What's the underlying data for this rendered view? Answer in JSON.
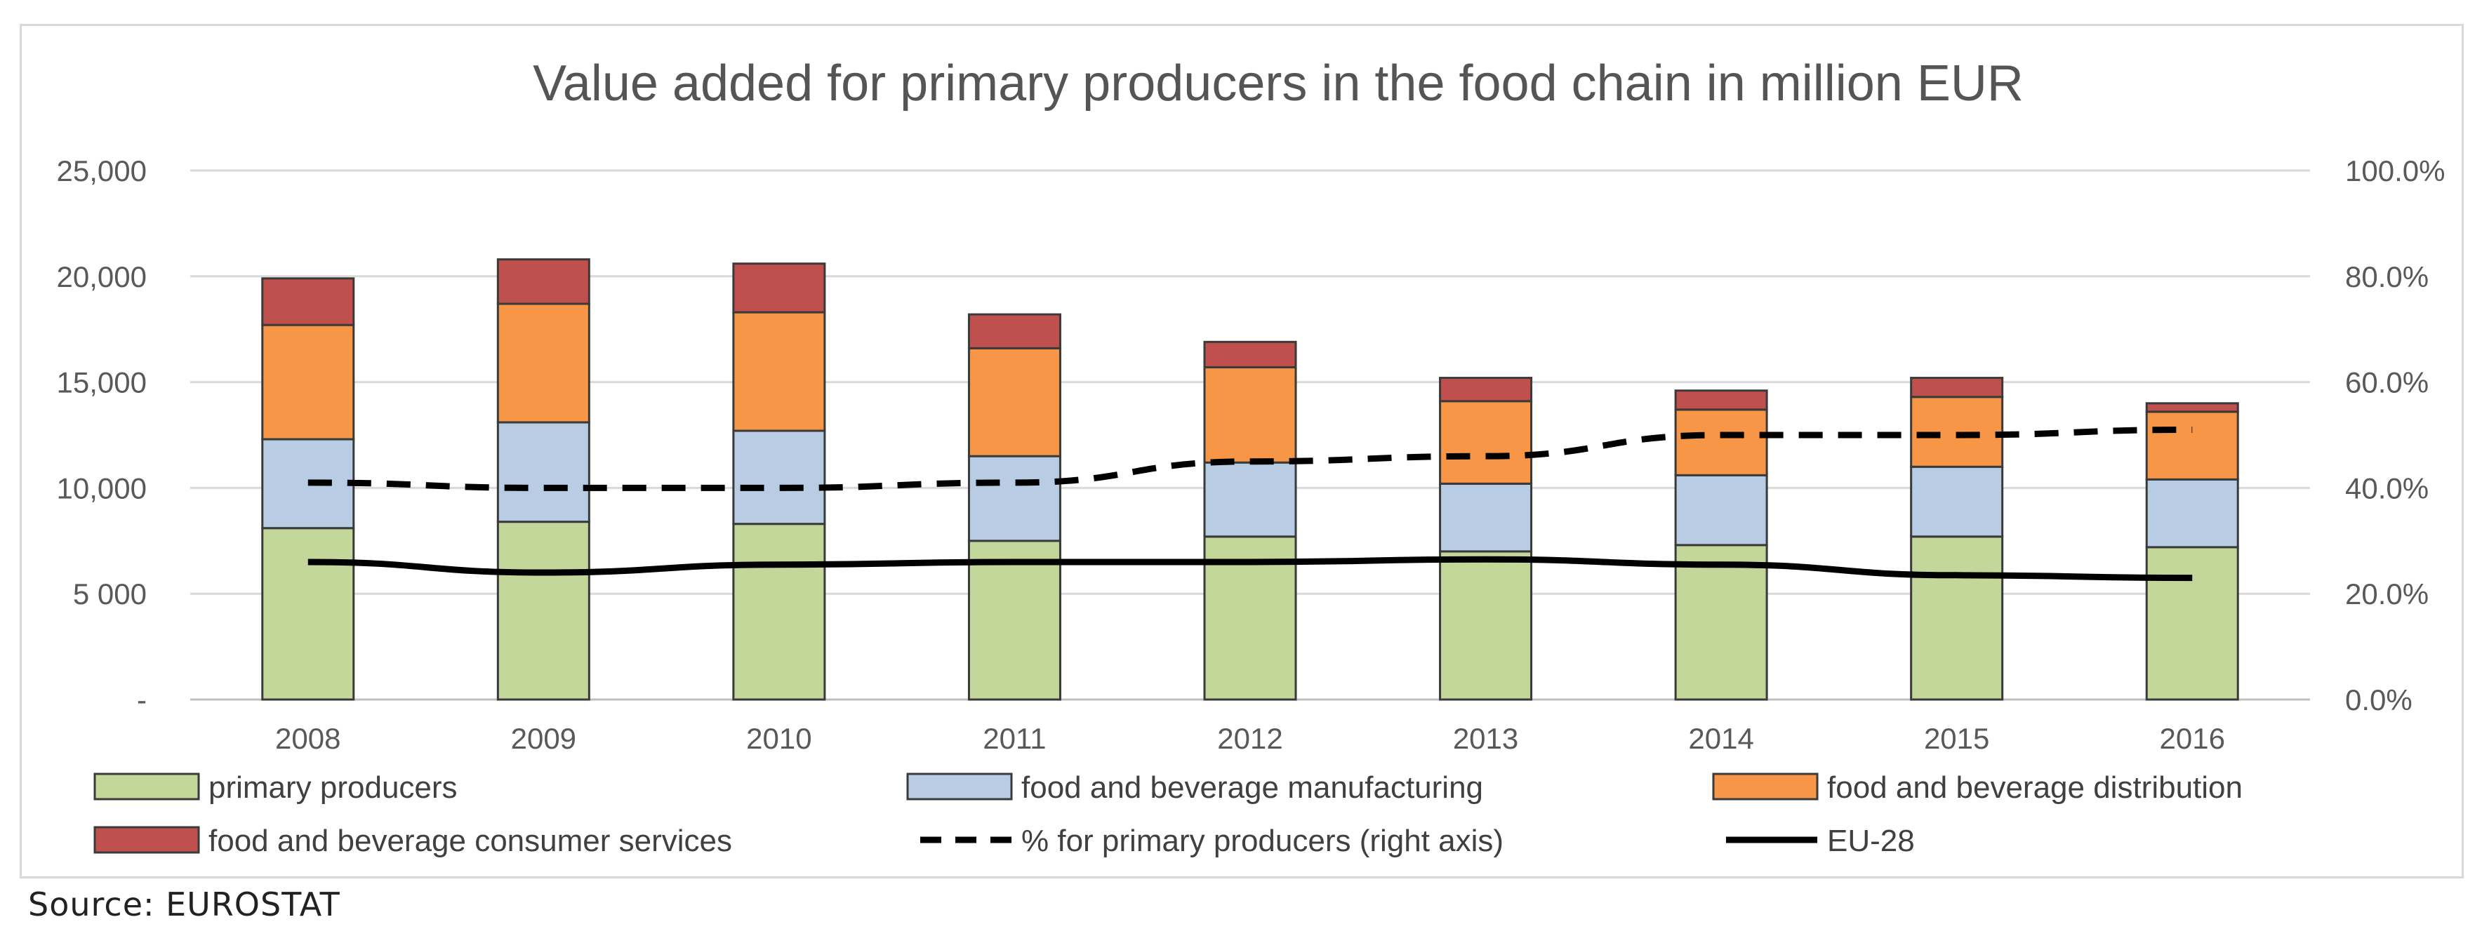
{
  "chart_data": {
    "type": "bar",
    "stacked": true,
    "title": "Value added for primary producers in the food chain in million EUR",
    "categories": [
      "2008",
      "2009",
      "2010",
      "2011",
      "2012",
      "2013",
      "2014",
      "2015",
      "2016"
    ],
    "y_left": {
      "range": [
        0,
        25000
      ],
      "ticks": [
        0,
        5000,
        10000,
        15000,
        20000,
        25000
      ],
      "tick_labels": [
        "-",
        "5 000",
        "10,000",
        "15,000",
        "20,000",
        "25,000"
      ]
    },
    "y_right": {
      "range": [
        0,
        100
      ],
      "ticks": [
        0,
        20,
        40,
        60,
        80,
        100
      ],
      "tick_labels": [
        "0.0%",
        "20.0%",
        "40.0%",
        "60.0%",
        "80.0%",
        "100.0%"
      ]
    },
    "grid": true,
    "series": [
      {
        "name": "primary producers",
        "kind": "bar",
        "color": "#c4d79b",
        "values": [
          8100,
          8400,
          8300,
          7500,
          7700,
          7000,
          7300,
          7700,
          7200
        ]
      },
      {
        "name": "food and beverage manufacturing",
        "kind": "bar",
        "color": "#b8cce4",
        "values": [
          4200,
          4700,
          4400,
          4000,
          3500,
          3200,
          3300,
          3300,
          3200
        ]
      },
      {
        "name": "food and beverage distribution",
        "kind": "bar",
        "color": "#f79646",
        "values": [
          5400,
          5600,
          5600,
          5100,
          4500,
          3900,
          3100,
          3300,
          3200
        ]
      },
      {
        "name": "food and beverage consumer services",
        "kind": "bar",
        "color": "#c0504d",
        "values": [
          2200,
          2100,
          2300,
          1600,
          1200,
          1100,
          900,
          900,
          400
        ]
      },
      {
        "name": "% for primary producers (right axis)",
        "kind": "line",
        "axis": "right",
        "style": "dashed",
        "color": "#000000",
        "values": [
          41,
          40,
          40,
          41,
          45,
          46,
          50,
          50,
          51
        ]
      },
      {
        "name": "EU-28",
        "kind": "line",
        "axis": "right",
        "style": "solid",
        "color": "#000000",
        "values": [
          26,
          24,
          25.5,
          26,
          26,
          26.5,
          25.5,
          23.5,
          23
        ]
      }
    ],
    "legend": {
      "placement": "bottom"
    }
  },
  "source": "Source: EUROSTAT"
}
